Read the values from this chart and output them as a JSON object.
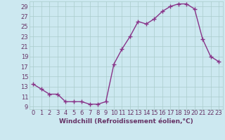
{
  "x": [
    0,
    1,
    2,
    3,
    4,
    5,
    6,
    7,
    8,
    9,
    10,
    11,
    12,
    13,
    14,
    15,
    16,
    17,
    18,
    19,
    20,
    21,
    22,
    23
  ],
  "y": [
    13.5,
    12.5,
    11.5,
    11.5,
    10.0,
    10.0,
    10.0,
    9.5,
    9.5,
    10.0,
    17.5,
    20.5,
    23.0,
    26.0,
    25.5,
    26.5,
    28.0,
    29.0,
    29.5,
    29.5,
    28.5,
    22.5,
    19.0,
    18.0
  ],
  "xlabel": "Windchill (Refroidissement éolien,°C)",
  "xlim_min": -0.5,
  "xlim_max": 23.5,
  "ylim_min": 8.5,
  "ylim_max": 30.0,
  "yticks": [
    9,
    11,
    13,
    15,
    17,
    19,
    21,
    23,
    25,
    27,
    29
  ],
  "xticks": [
    0,
    1,
    2,
    3,
    4,
    5,
    6,
    7,
    8,
    9,
    10,
    11,
    12,
    13,
    14,
    15,
    16,
    17,
    18,
    19,
    20,
    21,
    22,
    23
  ],
  "line_color": "#883388",
  "marker": "+",
  "marker_size": 4,
  "bg_color": "#cce8f0",
  "grid_color": "#aacccc",
  "font_color": "#663366",
  "tick_fontsize": 6,
  "xlabel_fontsize": 6.5,
  "linewidth": 1.0
}
